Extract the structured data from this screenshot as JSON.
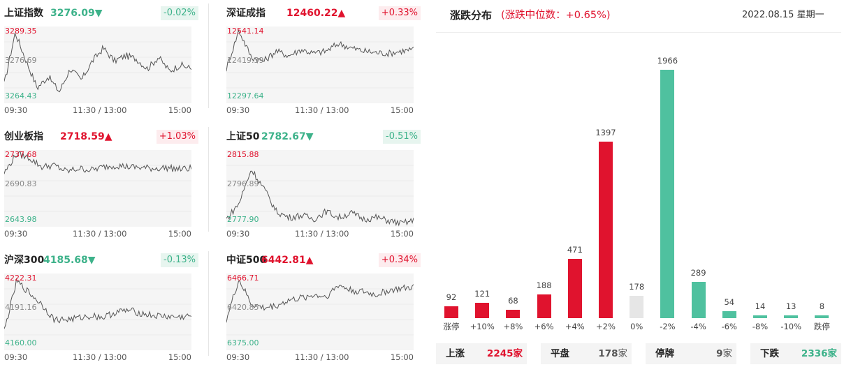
{
  "indices": [
    {
      "name": "上证指数",
      "value": "3276.09",
      "arrow": "▼",
      "dir": "down",
      "change": "-0.02%",
      "high": "3289.35",
      "mid": "3276.69",
      "low": "3264.43",
      "xlabels": [
        "09:30",
        "11:30 / 13:00",
        "15:00"
      ]
    },
    {
      "name": "深证成指",
      "value": "12460.22",
      "arrow": "▲",
      "dir": "up",
      "change": "+0.33%",
      "high": "12541.14",
      "mid": "12419.39",
      "low": "12297.64",
      "xlabels": [
        "09:30",
        "11:30 / 13:00",
        "15:00"
      ]
    },
    {
      "name": "创业板指",
      "value": "2718.59",
      "arrow": "▲",
      "dir": "up",
      "change": "+1.03%",
      "high": "2737.68",
      "mid": "2690.83",
      "low": "2643.98",
      "xlabels": [
        "09:30",
        "11:30 / 13:00",
        "15:00"
      ]
    },
    {
      "name": "上证50",
      "value": "2782.67",
      "arrow": "▼",
      "dir": "down",
      "change": "-0.51%",
      "high": "2815.88",
      "mid": "2796.89",
      "low": "2777.90",
      "xlabels": [
        "09:30",
        "11:30 / 13:00",
        "15:00"
      ]
    },
    {
      "name": "沪深300",
      "value": "4185.68",
      "arrow": "▼",
      "dir": "down",
      "change": "-0.13%",
      "high": "4222.31",
      "mid": "4191.16",
      "low": "4160.00",
      "xlabels": [
        "09:30",
        "11:30 / 13:00",
        "15:00"
      ]
    },
    {
      "name": "中证500",
      "value": "6442.81",
      "arrow": "▲",
      "dir": "up",
      "change": "+0.34%",
      "high": "6466.71",
      "mid": "6420.85",
      "low": "6375.00",
      "xlabels": [
        "09:30",
        "11:30 / 13:00",
        "15:00"
      ]
    }
  ],
  "distribution": {
    "title": "涨跌分布",
    "median": "(涨跌中位数：+0.65%)",
    "date": "2022.08.15 星期一"
  },
  "chart_data": {
    "type": "bar",
    "categories": [
      "涨停",
      "+10%",
      "+8%",
      "+6%",
      "+4%",
      "+2%",
      "0%",
      "-2%",
      "-4%",
      "-6%",
      "-8%",
      "-10%",
      "跌停"
    ],
    "values": [
      92,
      121,
      68,
      188,
      471,
      1397,
      178,
      1966,
      289,
      54,
      14,
      13,
      8
    ],
    "colors": [
      "#e0132e",
      "#e0132e",
      "#e0132e",
      "#e0132e",
      "#e0132e",
      "#e0132e",
      "#e6e6e6",
      "#4fc19f",
      "#4fc19f",
      "#4fc19f",
      "#4fc19f",
      "#4fc19f",
      "#4fc19f"
    ],
    "ylim": [
      0,
      1966
    ],
    "title": "涨跌分布",
    "xlabel": "",
    "ylabel": ""
  },
  "stats": [
    {
      "label": "上涨",
      "count": "2245",
      "unit": "家",
      "color": "#e0132e"
    },
    {
      "label": "平盘",
      "count": "178",
      "unit": "家",
      "color": "#555555"
    },
    {
      "label": "停牌",
      "count": "9",
      "unit": "家",
      "color": "#555555"
    },
    {
      "label": "下跌",
      "count": "2336",
      "unit": "家",
      "color": "#3db28a"
    }
  ],
  "colors": {
    "up": "#e0132e",
    "down": "#3db28a",
    "line": "#555555",
    "chart_bg": "#f5f5f5"
  }
}
